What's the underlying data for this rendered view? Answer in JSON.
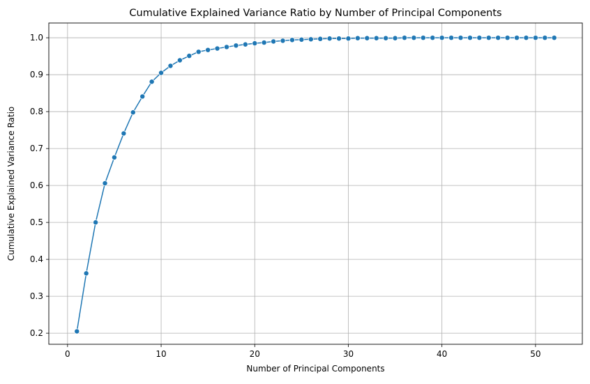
{
  "chart_data": {
    "type": "line",
    "title": "Cumulative Explained Variance Ratio by Number of Principal Components",
    "xlabel": "Number of Principal Components",
    "ylabel": "Cumulative Explained Variance Ratio",
    "xlim": [
      -2,
      55
    ],
    "ylim": [
      0.17,
      1.04
    ],
    "xticks": [
      0,
      10,
      20,
      30,
      40,
      50
    ],
    "yticks": [
      0.2,
      0.3,
      0.4,
      0.5,
      0.6,
      0.7,
      0.8,
      0.9,
      1.0
    ],
    "xtick_labels": [
      "0",
      "10",
      "20",
      "30",
      "40",
      "50"
    ],
    "ytick_labels": [
      "0.2",
      "0.3",
      "0.4",
      "0.5",
      "0.6",
      "0.7",
      "0.8",
      "0.9",
      "1.0"
    ],
    "grid": true,
    "marker": "circle",
    "line_color": "#1f77b4",
    "marker_edge_color": "#ffffff",
    "series": [
      {
        "x": [
          1,
          2,
          3,
          4,
          5,
          6,
          7,
          8,
          9,
          10,
          11,
          12,
          13,
          14,
          15,
          16,
          17,
          18,
          19,
          20,
          21,
          22,
          23,
          24,
          25,
          26,
          27,
          28,
          29,
          30,
          31,
          32,
          33,
          34,
          35,
          36,
          37,
          38,
          39,
          40,
          41,
          42,
          43,
          44,
          45,
          46,
          47,
          48,
          49,
          50,
          51,
          52
        ],
        "values": [
          0.205,
          0.362,
          0.5,
          0.606,
          0.676,
          0.741,
          0.798,
          0.841,
          0.881,
          0.905,
          0.924,
          0.939,
          0.951,
          0.962,
          0.967,
          0.971,
          0.975,
          0.979,
          0.982,
          0.985,
          0.987,
          0.99,
          0.992,
          0.994,
          0.995,
          0.996,
          0.997,
          0.998,
          0.998,
          0.998,
          0.999,
          0.999,
          0.999,
          0.999,
          0.999,
          1.0,
          1.0,
          1.0,
          1.0,
          1.0,
          1.0,
          1.0,
          1.0,
          1.0,
          1.0,
          1.0,
          1.0,
          1.0,
          1.0,
          1.0,
          1.0,
          1.0
        ]
      }
    ]
  }
}
